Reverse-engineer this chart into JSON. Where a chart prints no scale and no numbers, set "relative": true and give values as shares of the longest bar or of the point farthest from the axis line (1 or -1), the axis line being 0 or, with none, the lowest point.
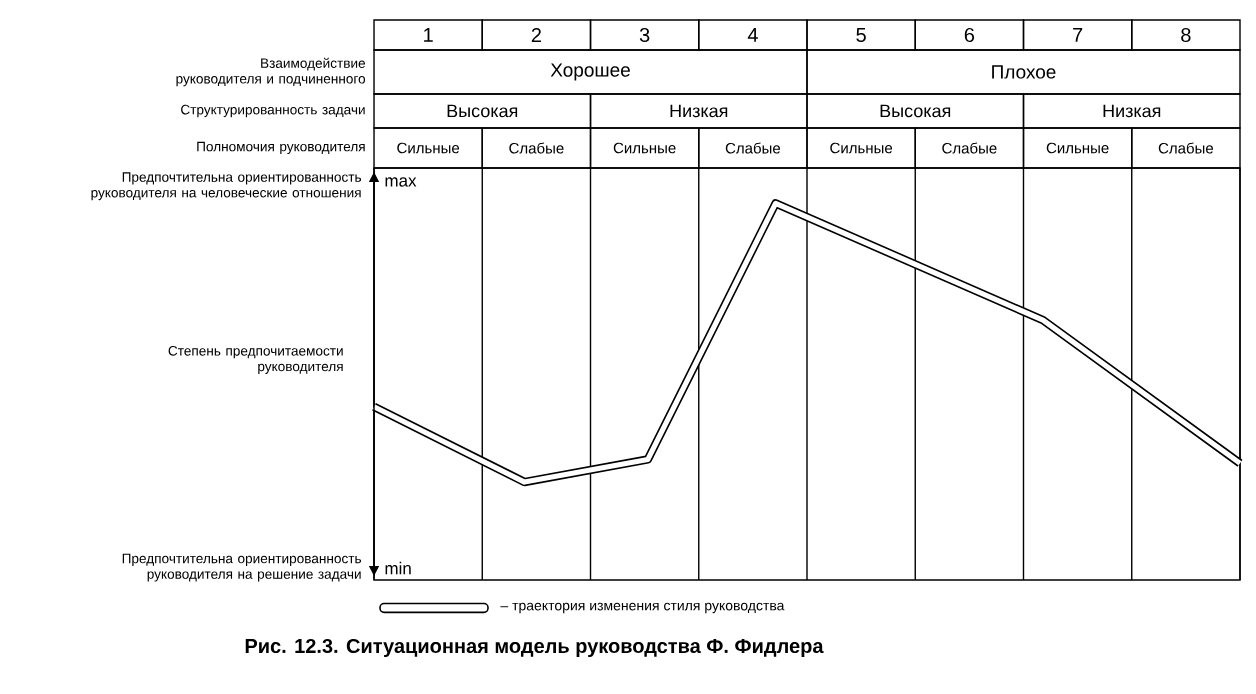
{
  "chart_data": {
    "type": "line",
    "title": "Рис. 12.3. Ситуационная модель руководства Ф. Фидлера",
    "ylabel": "Степень предпочитаемости руководителя",
    "xlim": [
      0,
      8
    ],
    "xticks": [
      {
        "value": 0,
        "label": null
      },
      {
        "value": 0.5,
        "label": "1"
      },
      {
        "value": 1,
        "label": null
      },
      {
        "value": 1.5,
        "label": "2"
      },
      {
        "value": 2,
        "label": null
      },
      {
        "value": 2.5,
        "label": "3"
      },
      {
        "value": 3,
        "label": null
      },
      {
        "value": 3.5,
        "label": "4"
      },
      {
        "value": 4,
        "label": null
      },
      {
        "value": 4.5,
        "label": "5"
      },
      {
        "value": 5,
        "label": null
      },
      {
        "value": 5.5,
        "label": "6"
      },
      {
        "value": 6,
        "label": null
      },
      {
        "value": 6.5,
        "label": "7"
      },
      {
        "value": 7,
        "label": null
      },
      {
        "value": 7.5,
        "label": "8"
      },
      {
        "value": 8,
        "label": null
      }
    ],
    "relative": true,
    "series": [
      {
        "name": "– траектория изменения стиля руководства",
        "color": "#000000",
        "x": [
          0,
          1.39,
          2.53,
          3.71,
          6.18,
          8
        ],
        "values": [
          0.46,
          0.26,
          0.32,
          1,
          0.69,
          0.31
        ]
      }
    ],
    "grid": "x",
    "legend": "bottom",
    "marker": "none",
    "annotations": [
      "Взаимодействие руководителя и подчиненного",
      "Хорошее",
      "Плохое",
      "Структурированность задачи",
      "Высокая",
      "Низкая",
      "Высокая",
      "Низкая",
      "Полномочия руководителя",
      "Сильные",
      "Слабые",
      "Сильные",
      "Слабые",
      "Сильные",
      "Слабые",
      "Сильные",
      "Слабые",
      "Предпочтительна ориентированность руководителя на человеческие отношения",
      "Предпочтительна ориентированность руководителя на решение задачи",
      "max",
      "min"
    ]
  }
}
